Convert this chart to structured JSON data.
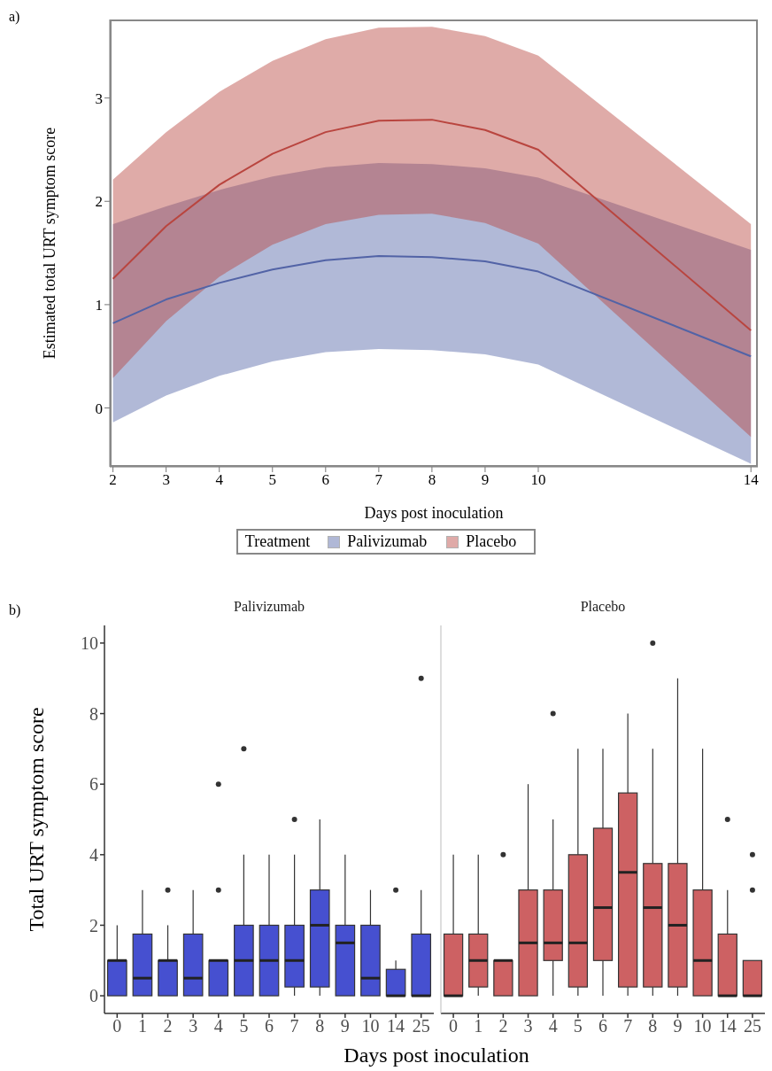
{
  "chart_data": [
    {
      "type": "line",
      "annotations": [
        "a)"
      ],
      "xlabel": "Days post inoculation",
      "ylabel": "Estimated total URT symptom score",
      "legend_title": "Treatment",
      "legend": "bottom",
      "x": [
        2,
        3,
        4,
        5,
        6,
        7,
        8,
        9,
        10,
        14
      ],
      "xlim": [
        1.94,
        14.13
      ],
      "xticks": [
        2,
        3,
        4,
        5,
        6,
        7,
        8,
        9,
        10,
        14
      ],
      "ylim": [
        -0.57,
        3.76
      ],
      "yticks": [
        0,
        1,
        2,
        3
      ],
      "series": [
        {
          "name": "Palivizumab",
          "color": "#5263a6",
          "values": [
            0.82,
            1.05,
            1.21,
            1.34,
            1.43,
            1.47,
            1.46,
            1.42,
            1.32,
            0.5
          ],
          "lower": [
            -0.14,
            0.12,
            0.31,
            0.45,
            0.54,
            0.57,
            0.56,
            0.52,
            0.42,
            -0.54
          ],
          "upper": [
            1.78,
            1.95,
            2.11,
            2.24,
            2.33,
            2.37,
            2.36,
            2.32,
            2.23,
            1.53
          ]
        },
        {
          "name": "Placebo",
          "color": "#b9453f",
          "values": [
            1.25,
            1.76,
            2.16,
            2.46,
            2.67,
            2.78,
            2.79,
            2.69,
            2.5,
            0.75
          ],
          "lower": [
            0.29,
            0.84,
            1.27,
            1.58,
            1.78,
            1.87,
            1.88,
            1.79,
            1.59,
            -0.28
          ],
          "upper": [
            2.21,
            2.67,
            3.06,
            3.36,
            3.57,
            3.68,
            3.69,
            3.6,
            3.41,
            1.78
          ]
        }
      ]
    },
    {
      "type": "box",
      "annotations": [
        "b)"
      ],
      "title": "Palivizumab",
      "xlabel": "Days post inoculation",
      "ylabel": "Total URT symptom score",
      "categories": [
        "0",
        "1",
        "2",
        "3",
        "4",
        "5",
        "6",
        "7",
        "8",
        "9",
        "10",
        "14",
        "25"
      ],
      "ylim": [
        -0.5,
        10.5
      ],
      "yticks": [
        0,
        2,
        4,
        6,
        8,
        10
      ],
      "series": [
        {
          "color": "#4650d0",
          "boxes": [
            {
              "low": 0,
              "q1": 0,
              "median": 1,
              "q3": 1,
              "high": 2
            },
            {
              "low": 0,
              "q1": 0,
              "median": 0.5,
              "q3": 1.75,
              "high": 3
            },
            {
              "low": 0,
              "q1": 0,
              "median": 1,
              "q3": 1,
              "high": 2,
              "outliers": [
                3
              ]
            },
            {
              "low": 0,
              "q1": 0,
              "median": 0.5,
              "q3": 1.75,
              "high": 3
            },
            {
              "low": 0,
              "q1": 0,
              "median": 1,
              "q3": 1,
              "high": 1,
              "outliers": [
                3,
                6
              ]
            },
            {
              "low": 0,
              "q1": 0,
              "median": 1,
              "q3": 2,
              "high": 4,
              "outliers": [
                7
              ]
            },
            {
              "low": 0,
              "q1": 0,
              "median": 1,
              "q3": 2,
              "high": 4
            },
            {
              "low": 0,
              "q1": 0.25,
              "median": 1,
              "q3": 2,
              "high": 4,
              "outliers": [
                5
              ]
            },
            {
              "low": 0,
              "q1": 0.25,
              "median": 2,
              "q3": 3,
              "high": 5
            },
            {
              "low": 0,
              "q1": 0,
              "median": 1.5,
              "q3": 2,
              "high": 4
            },
            {
              "low": 0,
              "q1": 0,
              "median": 0.5,
              "q3": 2,
              "high": 3
            },
            {
              "low": 0,
              "q1": 0,
              "median": 0,
              "q3": 0.75,
              "high": 1,
              "outliers": [
                3
              ]
            },
            {
              "low": 0,
              "q1": 0,
              "median": 0,
              "q3": 1.75,
              "high": 3,
              "outliers": [
                9
              ]
            }
          ]
        }
      ]
    },
    {
      "type": "box",
      "title": "Placebo",
      "tick_labels": "x",
      "categories": [
        "0",
        "1",
        "2",
        "3",
        "4",
        "5",
        "6",
        "7",
        "8",
        "9",
        "10",
        "14",
        "25"
      ],
      "ylim": [
        -0.5,
        10.5
      ],
      "yticks": [
        0,
        2,
        4,
        6,
        8,
        10
      ],
      "series": [
        {
          "color": "#cd6163",
          "boxes": [
            {
              "low": 0,
              "q1": 0,
              "median": 0,
              "q3": 1.75,
              "high": 4
            },
            {
              "low": 0,
              "q1": 0.25,
              "median": 1,
              "q3": 1.75,
              "high": 4
            },
            {
              "low": 0,
              "q1": 0,
              "median": 1,
              "q3": 1,
              "high": 1,
              "outliers": [
                4
              ]
            },
            {
              "low": 0,
              "q1": 0,
              "median": 1.5,
              "q3": 3,
              "high": 6
            },
            {
              "low": 0,
              "q1": 1,
              "median": 1.5,
              "q3": 3,
              "high": 5,
              "outliers": [
                8
              ]
            },
            {
              "low": 0,
              "q1": 0.25,
              "median": 1.5,
              "q3": 4,
              "high": 7
            },
            {
              "low": 0,
              "q1": 1,
              "median": 2.5,
              "q3": 4.75,
              "high": 7
            },
            {
              "low": 0,
              "q1": 0.25,
              "median": 3.5,
              "q3": 5.75,
              "high": 8
            },
            {
              "low": 0,
              "q1": 0.25,
              "median": 2.5,
              "q3": 3.75,
              "high": 7,
              "outliers": [
                10
              ]
            },
            {
              "low": 0,
              "q1": 0.25,
              "median": 2,
              "q3": 3.75,
              "high": 9
            },
            {
              "low": 0,
              "q1": 0,
              "median": 1,
              "q3": 3,
              "high": 7
            },
            {
              "low": 0,
              "q1": 0,
              "median": 0,
              "q3": 1.75,
              "high": 3,
              "outliers": [
                5
              ]
            },
            {
              "low": 0,
              "q1": 0,
              "median": 0,
              "q3": 1,
              "high": 1,
              "outliers": [
                3,
                4
              ]
            }
          ]
        }
      ]
    }
  ]
}
